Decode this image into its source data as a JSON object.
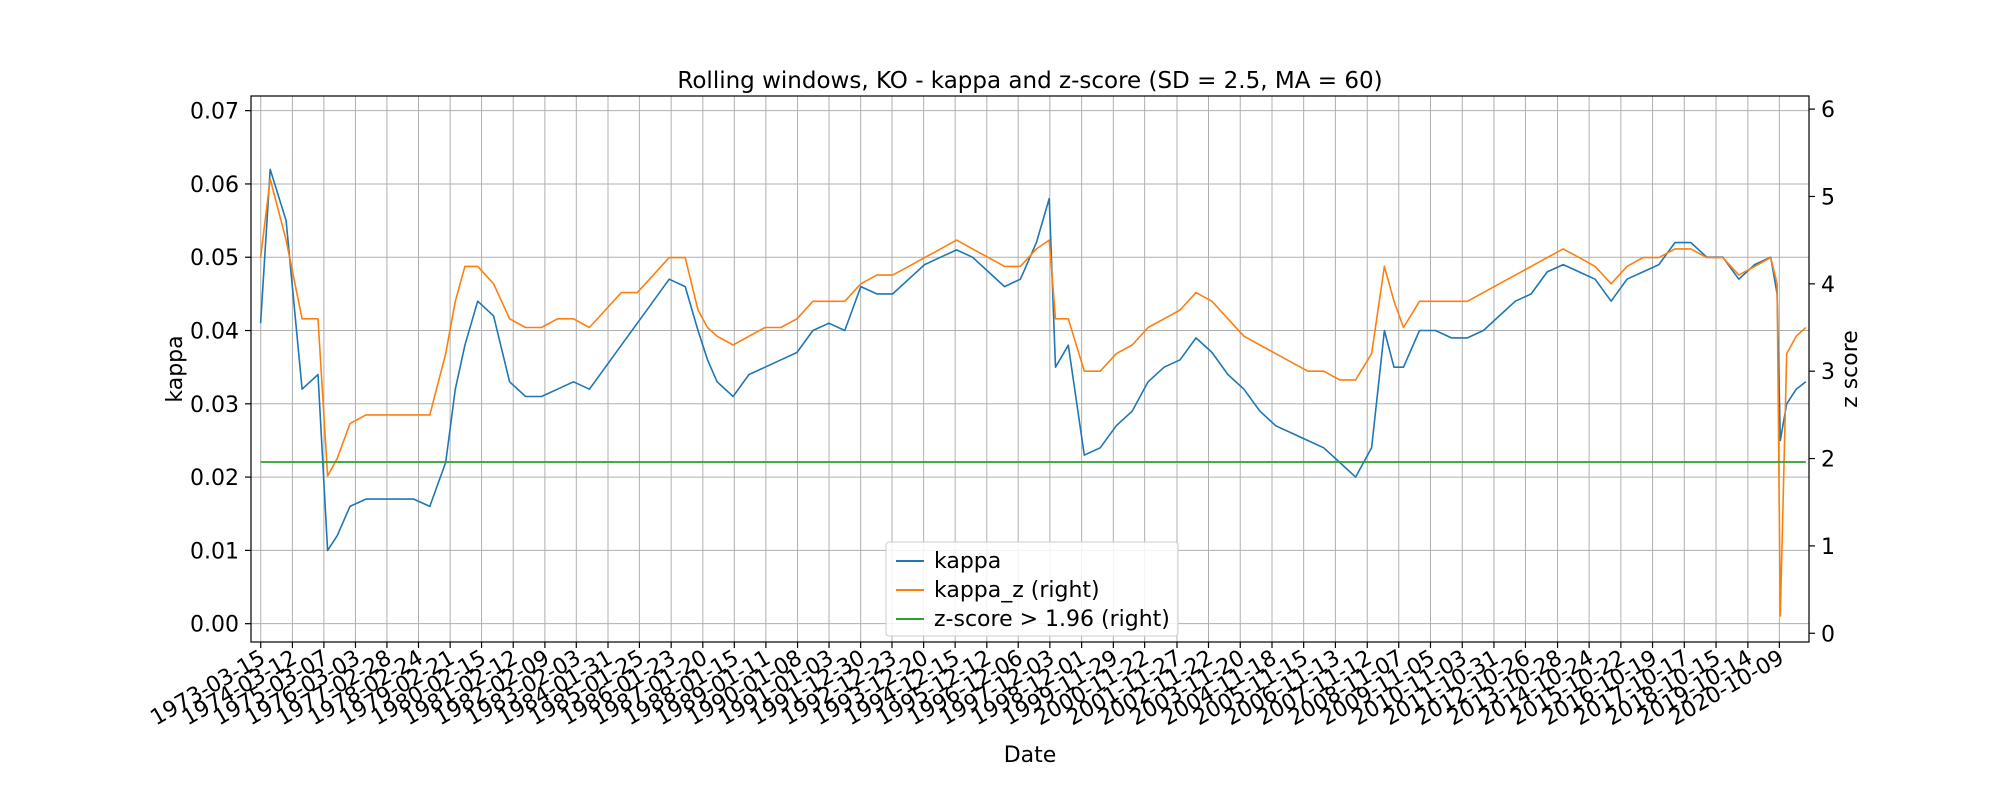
{
  "chart_data": {
    "type": "line",
    "title": "Rolling windows, KO - kappa and z-score (SD = 2.5, MA = 60)",
    "xlabel": "Date",
    "ylabel": "kappa",
    "ylabel_right": "z score",
    "ylim": [
      -0.0025,
      0.072
    ],
    "ylim_right": [
      -0.1,
      6.15
    ],
    "yticks": [
      "0.00",
      "0.01",
      "0.02",
      "0.03",
      "0.04",
      "0.05",
      "0.06",
      "0.07"
    ],
    "yticks_right": [
      "0",
      "1",
      "2",
      "3",
      "4",
      "5",
      "6"
    ],
    "grid": true,
    "legend_position": "lower-center",
    "x_dates": [
      "1973-03-15",
      "1974-03-12",
      "1975-03-07",
      "1976-03-03",
      "1977-02-28",
      "1978-02-24",
      "1979-02-21",
      "1980-02-15",
      "1981-02-12",
      "1982-02-09",
      "1983-02-03",
      "1984-01-31",
      "1985-01-25",
      "1986-01-23",
      "1987-01-20",
      "1988-01-15",
      "1989-01-11",
      "1990-01-08",
      "1991-01-03",
      "1991-12-30",
      "1992-12-23",
      "1993-12-20",
      "1994-12-15",
      "1995-12-12",
      "1996-12-06",
      "1997-12-03",
      "1998-12-01",
      "1999-11-29",
      "2000-11-22",
      "2001-11-27",
      "2002-11-22",
      "2003-11-20",
      "2004-11-18",
      "2005-11-15",
      "2006-11-13",
      "2007-11-12",
      "2008-11-07",
      "2009-11-05",
      "2010-11-03",
      "2011-10-31",
      "2012-10-26",
      "2013-10-28",
      "2014-10-24",
      "2015-10-22",
      "2016-10-19",
      "2017-10-17",
      "2018-10-15",
      "2019-10-14",
      "2020-10-09"
    ],
    "series": [
      {
        "name": "kappa",
        "axis": "left",
        "color": "#1f77b4",
        "x": [
          1973.2,
          1973.5,
          1974.0,
          1974.5,
          1975.0,
          1975.3,
          1975.6,
          1976.0,
          1976.5,
          1977.0,
          1977.5,
          1978.0,
          1978.5,
          1979.0,
          1979.3,
          1979.6,
          1980.0,
          1980.5,
          1981.0,
          1981.5,
          1982.0,
          1982.5,
          1983.0,
          1983.5,
          1984.0,
          1984.5,
          1985.0,
          1985.5,
          1986.0,
          1986.5,
          1986.9,
          1987.2,
          1987.5,
          1988.0,
          1988.5,
          1989.0,
          1989.5,
          1990.0,
          1990.5,
          1991.0,
          1991.5,
          1992.0,
          1992.5,
          1993.0,
          1993.5,
          1994.0,
          1994.5,
          1995.0,
          1995.5,
          1996.0,
          1996.5,
          1997.0,
          1997.5,
          1997.9,
          1998.1,
          1998.5,
          1999.0,
          1999.5,
          2000.0,
          2000.5,
          2001.0,
          2001.5,
          2002.0,
          2002.5,
          2003.0,
          2003.5,
          2004.0,
          2004.5,
          2005.0,
          2005.5,
          2006.0,
          2006.5,
          2007.0,
          2007.5,
          2008.0,
          2008.4,
          2008.7,
          2009.0,
          2009.5,
          2010.0,
          2010.5,
          2011.0,
          2011.5,
          2012.0,
          2012.5,
          2013.0,
          2013.5,
          2014.0,
          2014.5,
          2015.0,
          2015.5,
          2016.0,
          2016.5,
          2017.0,
          2017.5,
          2018.0,
          2018.5,
          2019.0,
          2019.5,
          2020.0,
          2020.5,
          2020.7,
          2020.8,
          2021.0,
          2021.3,
          2021.6
        ],
        "y": [
          0.041,
          0.062,
          0.055,
          0.032,
          0.034,
          0.01,
          0.012,
          0.016,
          0.017,
          0.017,
          0.017,
          0.017,
          0.016,
          0.022,
          0.032,
          0.038,
          0.044,
          0.042,
          0.033,
          0.031,
          0.031,
          0.032,
          0.033,
          0.032,
          0.035,
          0.038,
          0.041,
          0.044,
          0.047,
          0.046,
          0.04,
          0.036,
          0.033,
          0.031,
          0.034,
          0.035,
          0.036,
          0.037,
          0.04,
          0.041,
          0.04,
          0.046,
          0.045,
          0.045,
          0.047,
          0.049,
          0.05,
          0.051,
          0.05,
          0.048,
          0.046,
          0.047,
          0.052,
          0.058,
          0.035,
          0.038,
          0.023,
          0.024,
          0.027,
          0.029,
          0.033,
          0.035,
          0.036,
          0.039,
          0.037,
          0.034,
          0.032,
          0.029,
          0.027,
          0.026,
          0.025,
          0.024,
          0.022,
          0.02,
          0.024,
          0.04,
          0.035,
          0.035,
          0.04,
          0.04,
          0.039,
          0.039,
          0.04,
          0.042,
          0.044,
          0.045,
          0.048,
          0.049,
          0.048,
          0.047,
          0.044,
          0.047,
          0.048,
          0.049,
          0.052,
          0.052,
          0.05,
          0.05,
          0.047,
          0.049,
          0.05,
          0.045,
          0.025,
          0.03,
          0.032,
          0.033
        ]
      },
      {
        "name": "kappa_z (right)",
        "axis": "right",
        "color": "#ff7f0e",
        "x": [
          1973.2,
          1973.5,
          1974.0,
          1974.5,
          1975.0,
          1975.3,
          1975.6,
          1976.0,
          1976.5,
          1977.0,
          1977.5,
          1978.0,
          1978.5,
          1979.0,
          1979.3,
          1979.6,
          1980.0,
          1980.5,
          1981.0,
          1981.5,
          1982.0,
          1982.5,
          1983.0,
          1983.5,
          1984.0,
          1984.5,
          1985.0,
          1985.5,
          1986.0,
          1986.5,
          1986.9,
          1987.2,
          1987.5,
          1988.0,
          1988.5,
          1989.0,
          1989.5,
          1990.0,
          1990.5,
          1991.0,
          1991.5,
          1992.0,
          1992.5,
          1993.0,
          1993.5,
          1994.0,
          1994.5,
          1995.0,
          1995.5,
          1996.0,
          1996.5,
          1997.0,
          1997.5,
          1997.9,
          1998.1,
          1998.5,
          1999.0,
          1999.5,
          2000.0,
          2000.5,
          2001.0,
          2001.5,
          2002.0,
          2002.5,
          2003.0,
          2003.5,
          2004.0,
          2004.5,
          2005.0,
          2005.5,
          2006.0,
          2006.5,
          2007.0,
          2007.5,
          2008.0,
          2008.4,
          2008.7,
          2009.0,
          2009.5,
          2010.0,
          2010.5,
          2011.0,
          2011.5,
          2012.0,
          2012.5,
          2013.0,
          2013.5,
          2014.0,
          2014.5,
          2015.0,
          2015.5,
          2016.0,
          2016.5,
          2017.0,
          2017.5,
          2018.0,
          2018.5,
          2019.0,
          2019.5,
          2020.0,
          2020.5,
          2020.7,
          2020.8,
          2021.0,
          2021.3,
          2021.6
        ],
        "y": [
          4.3,
          5.2,
          4.5,
          3.6,
          3.6,
          1.8,
          2.0,
          2.4,
          2.5,
          2.5,
          2.5,
          2.5,
          2.5,
          3.2,
          3.8,
          4.2,
          4.2,
          4.0,
          3.6,
          3.5,
          3.5,
          3.6,
          3.6,
          3.5,
          3.7,
          3.9,
          3.9,
          4.1,
          4.3,
          4.3,
          3.7,
          3.5,
          3.4,
          3.3,
          3.4,
          3.5,
          3.5,
          3.6,
          3.8,
          3.8,
          3.8,
          4.0,
          4.1,
          4.1,
          4.2,
          4.3,
          4.4,
          4.5,
          4.4,
          4.3,
          4.2,
          4.2,
          4.4,
          4.5,
          3.6,
          3.6,
          3.0,
          3.0,
          3.2,
          3.3,
          3.5,
          3.6,
          3.7,
          3.9,
          3.8,
          3.6,
          3.4,
          3.3,
          3.2,
          3.1,
          3.0,
          3.0,
          2.9,
          2.9,
          3.2,
          4.2,
          3.8,
          3.5,
          3.8,
          3.8,
          3.8,
          3.8,
          3.9,
          4.0,
          4.1,
          4.2,
          4.3,
          4.4,
          4.3,
          4.2,
          4.0,
          4.2,
          4.3,
          4.3,
          4.4,
          4.4,
          4.3,
          4.3,
          4.1,
          4.2,
          4.3,
          4.0,
          0.2,
          3.2,
          3.4,
          3.5
        ]
      },
      {
        "name": "z-score > 1.96 (right)",
        "axis": "right",
        "color": "#2ca02c",
        "x": [
          1973.2,
          2021.6
        ],
        "y": [
          1.96,
          1.96
        ]
      }
    ]
  }
}
